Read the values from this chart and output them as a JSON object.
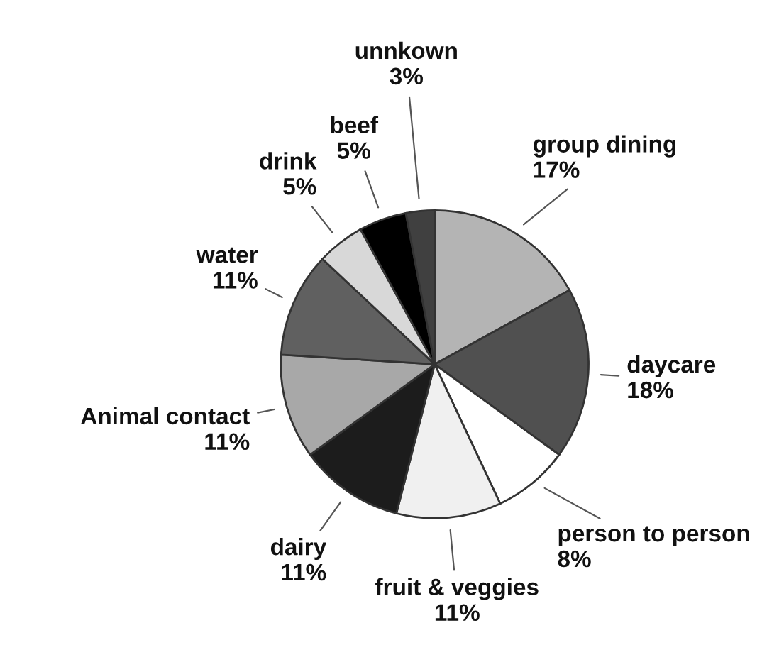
{
  "chart_data": {
    "type": "pie",
    "categories": [
      "group dining",
      "daycare",
      "person to person",
      "fruit & veggies",
      "dairy",
      "Animal contact",
      "water",
      "drink",
      "beef",
      "unnkown"
    ],
    "values": [
      17,
      18,
      8,
      11,
      11,
      11,
      11,
      5,
      5,
      3
    ],
    "value_labels": [
      "17%",
      "18%",
      "8%",
      "11%",
      "11%",
      "11%",
      "11%",
      "5%",
      "5%",
      "3%"
    ],
    "colors": [
      "#b4b4b4",
      "#505050",
      "#ffffff",
      "#f0f0f0",
      "#1c1c1c",
      "#a8a8a8",
      "#606060",
      "#d8d8d8",
      "#000000",
      "#404040"
    ],
    "legend": false
  }
}
